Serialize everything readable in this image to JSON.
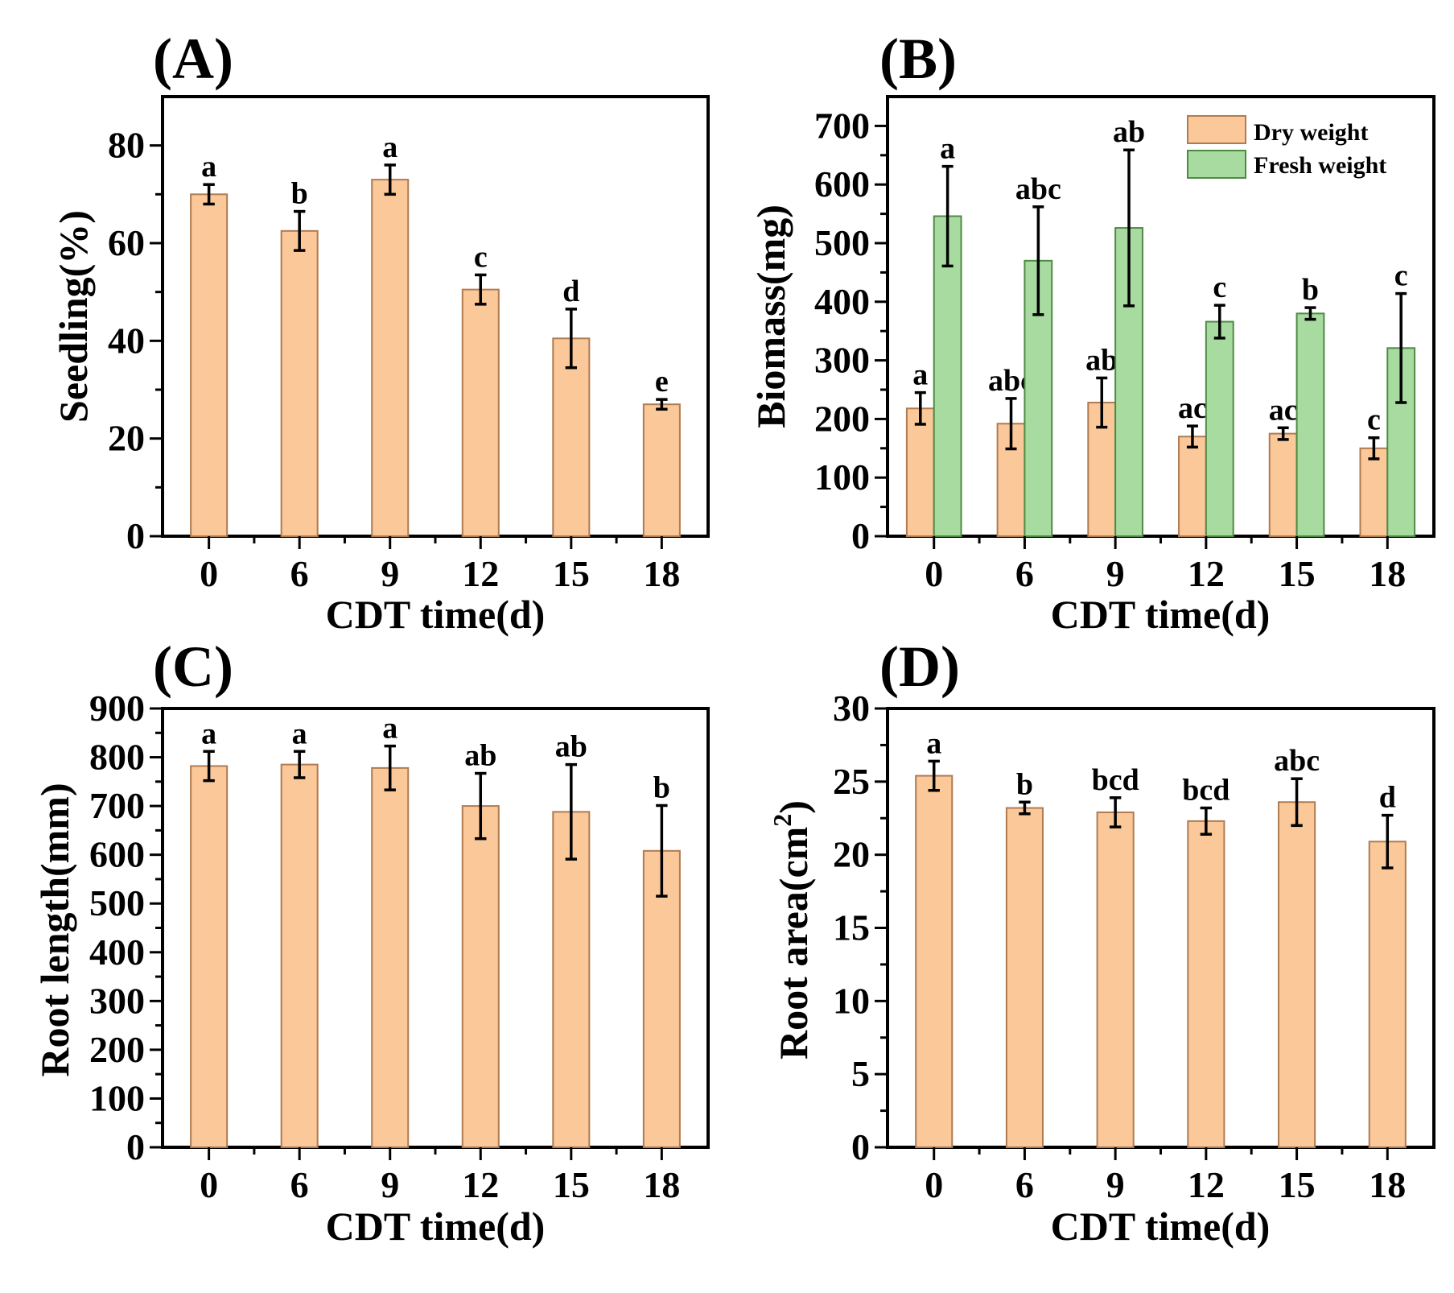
{
  "colors": {
    "dry_fill": "#fbc89a",
    "dry_stroke": "#b07b50",
    "fresh_fill": "#a8dba0",
    "fresh_stroke": "#4f8a45",
    "axis": "#000000"
  },
  "chart_data": [
    {
      "id": "A",
      "panel_label": "(A)",
      "type": "bar",
      "xlabel": "CDT time(d)",
      "ylabel": "Seedling(%)",
      "categories": [
        "0",
        "6",
        "9",
        "12",
        "15",
        "18"
      ],
      "ylim": [
        0,
        90
      ],
      "yticks": [
        0,
        20,
        40,
        60,
        80
      ],
      "ytick_labels": [
        "0",
        "20",
        "40",
        "60",
        "80"
      ],
      "series": [
        {
          "name": "Seedling",
          "color_key": "dry",
          "values": [
            70,
            62.5,
            73,
            50.5,
            40.5,
            27
          ],
          "errors": [
            2,
            4,
            3,
            3,
            6,
            1
          ],
          "labels": [
            "a",
            "b",
            "a",
            "c",
            "d",
            "e"
          ]
        }
      ]
    },
    {
      "id": "B",
      "panel_label": "(B)",
      "type": "bar",
      "xlabel": "CDT time(d)",
      "ylabel": "Biomass(mg)",
      "categories": [
        "0",
        "6",
        "9",
        "12",
        "15",
        "18"
      ],
      "ylim": [
        0,
        750
      ],
      "yticks": [
        0,
        100,
        200,
        300,
        400,
        500,
        600,
        700
      ],
      "ytick_labels": [
        "0",
        "100",
        "200",
        "300",
        "400",
        "500",
        "600",
        "700"
      ],
      "legend": {
        "position": "top-right"
      },
      "series": [
        {
          "name": "Dry weight",
          "color_key": "dry",
          "values": [
            218,
            192,
            228,
            170,
            175,
            150
          ],
          "errors": [
            27,
            43,
            42,
            18,
            10,
            18
          ],
          "labels": [
            "a",
            "abc",
            "ab",
            "ac",
            "ac",
            "c"
          ]
        },
        {
          "name": "Fresh weight",
          "color_key": "fresh",
          "values": [
            546,
            470,
            526,
            366,
            380,
            321
          ],
          "errors": [
            85,
            92,
            133,
            28,
            10,
            93
          ],
          "labels": [
            "a",
            "abc",
            "ab",
            "c",
            "b",
            "c"
          ]
        }
      ]
    },
    {
      "id": "C",
      "panel_label": "(C)",
      "type": "bar",
      "xlabel": "CDT time(d)",
      "ylabel": "Root length(mm)",
      "categories": [
        "0",
        "6",
        "9",
        "12",
        "15",
        "18"
      ],
      "ylim": [
        0,
        900
      ],
      "yticks": [
        0,
        100,
        200,
        300,
        400,
        500,
        600,
        700,
        800,
        900
      ],
      "ytick_labels": [
        "0",
        "100",
        "200",
        "300",
        "400",
        "500",
        "600",
        "700",
        "800",
        "900"
      ],
      "series": [
        {
          "name": "Root length",
          "color_key": "dry",
          "values": [
            782,
            785,
            778,
            700,
            688,
            608
          ],
          "errors": [
            30,
            27,
            45,
            67,
            97,
            93
          ],
          "labels": [
            "a",
            "a",
            "a",
            "ab",
            "ab",
            "b"
          ]
        }
      ]
    },
    {
      "id": "D",
      "panel_label": "(D)",
      "type": "bar",
      "xlabel": "CDT time(d)",
      "ylabel_main": "Root area(cm",
      "ylabel_sup": "2",
      "ylabel_end": ")",
      "categories": [
        "0",
        "6",
        "9",
        "12",
        "15",
        "18"
      ],
      "ylim": [
        0,
        30
      ],
      "yticks": [
        0,
        5,
        10,
        15,
        20,
        25,
        30
      ],
      "ytick_labels": [
        "0",
        "5",
        "10",
        "15",
        "20",
        "25",
        "30"
      ],
      "series": [
        {
          "name": "Root area",
          "color_key": "dry",
          "values": [
            25.4,
            23.2,
            22.9,
            22.3,
            23.6,
            20.9
          ],
          "errors": [
            1.0,
            0.4,
            1.0,
            0.9,
            1.6,
            1.8
          ],
          "labels": [
            "a",
            "b",
            "bcd",
            "bcd",
            "abc",
            "d"
          ]
        }
      ]
    }
  ]
}
